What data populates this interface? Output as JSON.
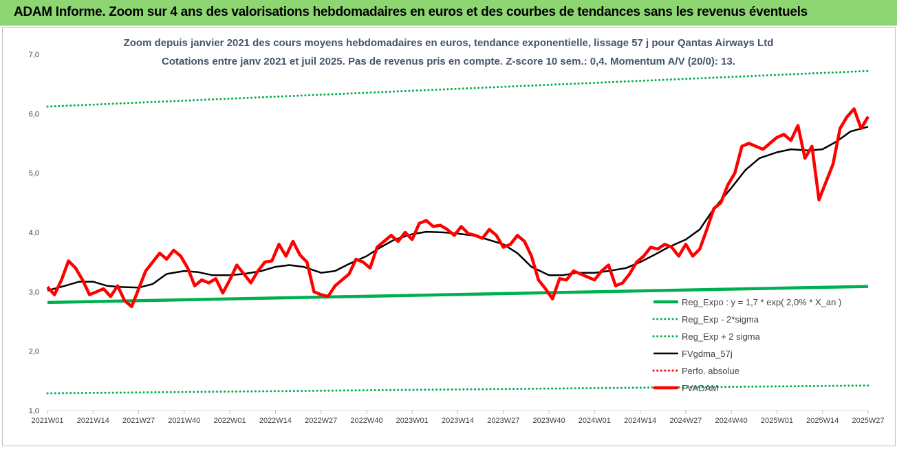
{
  "header": {
    "banner": "ADAM Informe. Zoom sur 4 ans des valorisations hebdomadaires en euros et des courbes de tendances sans les revenus éventuels"
  },
  "chart_data": {
    "type": "line",
    "title": "Zoom depuis janvier 2021 des cours moyens hebdomadaires en euros, tendance exponentielle, lissage 57 j pour Qantas Airways Ltd",
    "subtitle": "Cotations entre janv 2021 et juil 2025. Pas de revenus pris en compte. Z-score 10 sem.: 0,4. Momentum A/V (20/0): 13.",
    "xlabel": "",
    "ylabel": "",
    "ylim": [
      1.0,
      7.0
    ],
    "y_ticks": [
      "1,0",
      "2,0",
      "3,0",
      "4,0",
      "5,0",
      "6,0",
      "7,0"
    ],
    "x_ticks": [
      "2021W01",
      "2021W14",
      "2021W27",
      "2021W40",
      "2022W01",
      "2022W14",
      "2022W27",
      "2022W40",
      "2023W01",
      "2023W14",
      "2023W27",
      "2023W40",
      "2024W01",
      "2024W14",
      "2024W27",
      "2024W40",
      "2025W01",
      "2025W14",
      "2025W27"
    ],
    "grid": false,
    "legend_position": "bottom-right",
    "series": [
      {
        "name": "Reg_Expo : y = 1,7 * exp( 2,0% *  X_an )",
        "color": "#00b050",
        "style": "solid-thick",
        "x": [
          "2021W01",
          "2025W27"
        ],
        "y": [
          2.82,
          3.09
        ]
      },
      {
        "name": "Reg_Exp - 2*sigma",
        "color": "#00b050",
        "style": "dotted",
        "x": [
          "2021W01",
          "2025W27"
        ],
        "y": [
          1.29,
          1.42
        ]
      },
      {
        "name": "Reg_Exp + 2 sigma",
        "color": "#00b050",
        "style": "dotted",
        "x": [
          "2021W01",
          "2025W27"
        ],
        "y": [
          6.12,
          6.72
        ]
      },
      {
        "name": "FVgdma_57j",
        "color": "#000000",
        "style": "solid",
        "x": [
          "2021W01",
          "2021W06",
          "2021W10",
          "2021W14",
          "2021W18",
          "2021W22",
          "2021W27",
          "2021W31",
          "2021W35",
          "2021W40",
          "2021W44",
          "2021W48",
          "2022W01",
          "2022W05",
          "2022W10",
          "2022W14",
          "2022W18",
          "2022W22",
          "2022W27",
          "2022W31",
          "2022W35",
          "2022W40",
          "2022W44",
          "2022W48",
          "2023W01",
          "2023W05",
          "2023W10",
          "2023W14",
          "2023W18",
          "2023W22",
          "2023W27",
          "2023W31",
          "2023W35",
          "2023W40",
          "2023W44",
          "2023W48",
          "2024W01",
          "2024W05",
          "2024W10",
          "2024W14",
          "2024W18",
          "2024W22",
          "2024W27",
          "2024W31",
          "2024W35",
          "2024W40",
          "2024W44",
          "2024W48",
          "2025W01",
          "2025W05",
          "2025W10",
          "2025W14",
          "2025W18",
          "2025W22",
          "2025W27"
        ],
        "y": [
          3.02,
          3.1,
          3.17,
          3.17,
          3.1,
          3.08,
          3.07,
          3.13,
          3.3,
          3.35,
          3.33,
          3.28,
          3.28,
          3.3,
          3.35,
          3.42,
          3.45,
          3.42,
          3.32,
          3.35,
          3.47,
          3.6,
          3.75,
          3.88,
          3.97,
          4.01,
          4.0,
          3.98,
          3.95,
          3.89,
          3.8,
          3.65,
          3.42,
          3.28,
          3.28,
          3.32,
          3.32,
          3.35,
          3.4,
          3.5,
          3.62,
          3.75,
          3.88,
          4.05,
          4.4,
          4.75,
          5.05,
          5.25,
          5.35,
          5.4,
          5.38,
          5.4,
          5.53,
          5.7,
          5.78
        ]
      },
      {
        "name": "Perfo. absolue",
        "color": "#ff0000",
        "style": "dotted",
        "x": [],
        "y": []
      },
      {
        "name": "FVADAM",
        "color": "#ff0000",
        "style": "solid-thick",
        "x": [
          "2021W01",
          "2021W03",
          "2021W05",
          "2021W07",
          "2021W09",
          "2021W11",
          "2021W13",
          "2021W15",
          "2021W17",
          "2021W19",
          "2021W21",
          "2021W23",
          "2021W25",
          "2021W27",
          "2021W29",
          "2021W31",
          "2021W33",
          "2021W35",
          "2021W37",
          "2021W39",
          "2021W41",
          "2021W43",
          "2021W45",
          "2021W47",
          "2021W49",
          "2021W51",
          "2022W01",
          "2022W03",
          "2022W05",
          "2022W07",
          "2022W09",
          "2022W11",
          "2022W13",
          "2022W15",
          "2022W17",
          "2022W19",
          "2022W21",
          "2022W23",
          "2022W25",
          "2022W27",
          "2022W29",
          "2022W31",
          "2022W33",
          "2022W35",
          "2022W37",
          "2022W39",
          "2022W41",
          "2022W43",
          "2022W45",
          "2022W47",
          "2022W49",
          "2022W51",
          "2023W01",
          "2023W03",
          "2023W05",
          "2023W07",
          "2023W09",
          "2023W11",
          "2023W13",
          "2023W15",
          "2023W17",
          "2023W19",
          "2023W21",
          "2023W23",
          "2023W25",
          "2023W27",
          "2023W29",
          "2023W31",
          "2023W33",
          "2023W35",
          "2023W37",
          "2023W39",
          "2023W41",
          "2023W43",
          "2023W45",
          "2023W47",
          "2023W49",
          "2023W51",
          "2024W01",
          "2024W03",
          "2024W05",
          "2024W07",
          "2024W09",
          "2024W11",
          "2024W13",
          "2024W15",
          "2024W17",
          "2024W19",
          "2024W21",
          "2024W23",
          "2024W25",
          "2024W27",
          "2024W29",
          "2024W31",
          "2024W33",
          "2024W35",
          "2024W37",
          "2024W39",
          "2024W41",
          "2024W43",
          "2024W45",
          "2024W47",
          "2024W49",
          "2024W51",
          "2025W01",
          "2025W03",
          "2025W05",
          "2025W07",
          "2025W09",
          "2025W11",
          "2025W13",
          "2025W15",
          "2025W17",
          "2025W19",
          "2025W21",
          "2025W23",
          "2025W25",
          "2025W27"
        ],
        "y": [
          3.08,
          2.95,
          3.2,
          3.52,
          3.4,
          3.2,
          2.95,
          3.0,
          3.05,
          2.92,
          3.1,
          2.85,
          2.75,
          3.05,
          3.35,
          3.5,
          3.65,
          3.55,
          3.7,
          3.6,
          3.4,
          3.1,
          3.2,
          3.15,
          3.22,
          2.98,
          3.2,
          3.45,
          3.3,
          3.15,
          3.35,
          3.5,
          3.52,
          3.8,
          3.6,
          3.85,
          3.62,
          3.5,
          3.0,
          2.95,
          2.92,
          3.1,
          3.2,
          3.3,
          3.55,
          3.5,
          3.4,
          3.75,
          3.85,
          3.95,
          3.85,
          4.0,
          3.88,
          4.15,
          4.2,
          4.1,
          4.12,
          4.05,
          3.95,
          4.1,
          3.98,
          3.95,
          3.9,
          4.05,
          3.95,
          3.75,
          3.8,
          3.95,
          3.85,
          3.6,
          3.2,
          3.05,
          2.88,
          3.22,
          3.2,
          3.35,
          3.3,
          3.25,
          3.2,
          3.35,
          3.45,
          3.1,
          3.15,
          3.3,
          3.5,
          3.6,
          3.75,
          3.72,
          3.8,
          3.75,
          3.6,
          3.8,
          3.6,
          3.72,
          4.05,
          4.4,
          4.5,
          4.8,
          5.0,
          5.45,
          5.5,
          5.45,
          5.4,
          5.5,
          5.6,
          5.65,
          5.55,
          5.8,
          5.25,
          5.45,
          4.55,
          4.85,
          5.15,
          5.75,
          5.95,
          6.08,
          5.75,
          5.95
        ]
      }
    ]
  }
}
